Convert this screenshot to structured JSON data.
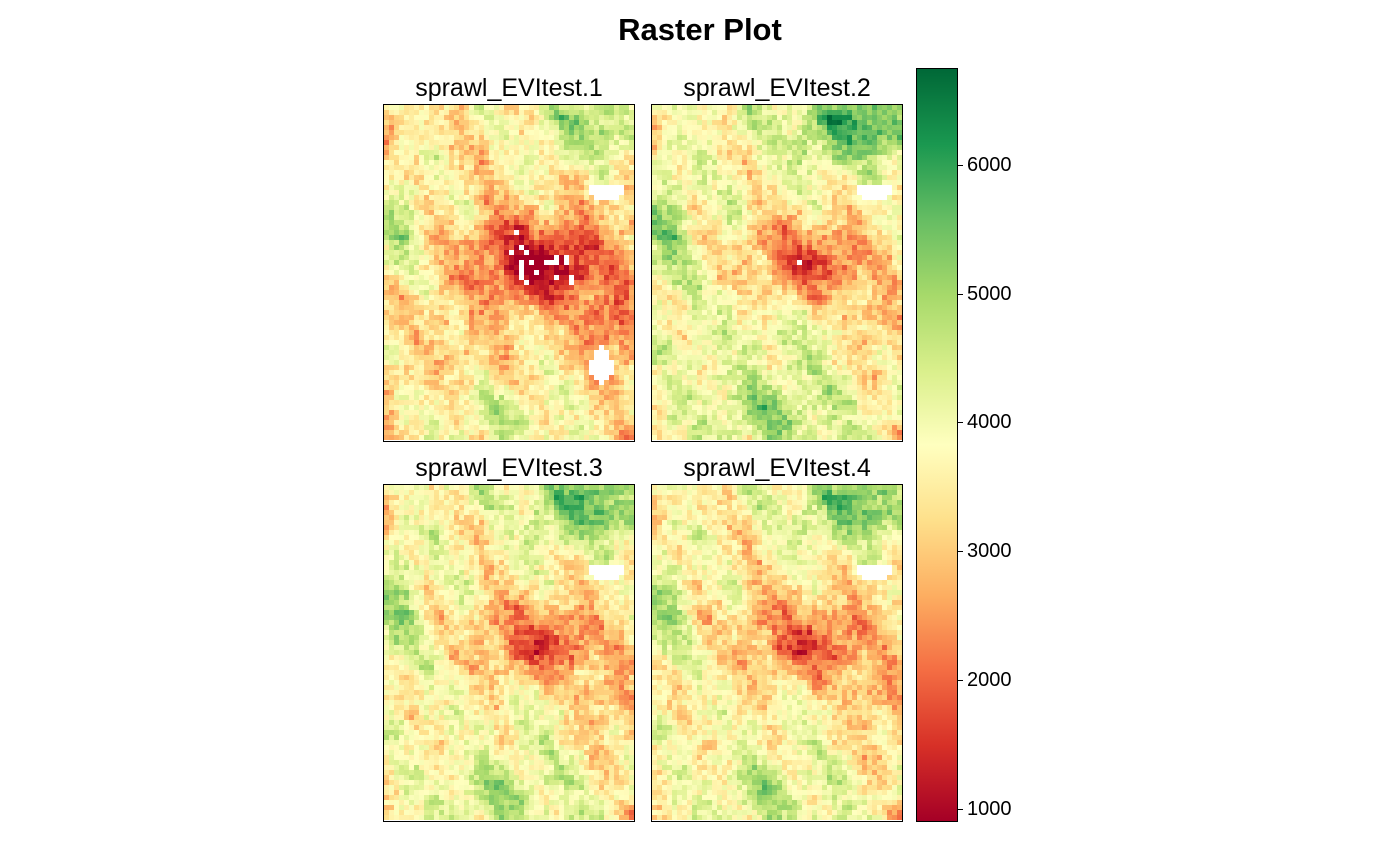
{
  "title": "Raster Plot",
  "chart_data": {
    "type": "heatmap",
    "title": "Raster Plot",
    "xlabel": "",
    "ylabel": "",
    "layout": "2x2",
    "panels": [
      {
        "name": "sprawl_EVItest.1",
        "mean_value_estimate": 3300
      },
      {
        "name": "sprawl_EVItest.2",
        "mean_value_estimate": 3700
      },
      {
        "name": "sprawl_EVItest.3",
        "mean_value_estimate": 3600
      },
      {
        "name": "sprawl_EVItest.4",
        "mean_value_estimate": 3500
      }
    ],
    "value_range": [
      900,
      6750
    ],
    "colorkey": {
      "ticks": [
        {
          "value": 1000,
          "label": "1000"
        },
        {
          "value": 2000,
          "label": "2000"
        },
        {
          "value": 3000,
          "label": "3000"
        },
        {
          "value": 4000,
          "label": "4000"
        },
        {
          "value": 5000,
          "label": "5000"
        },
        {
          "value": 6000,
          "label": "6000"
        }
      ],
      "palette": [
        "#a50026",
        "#d73027",
        "#f46d43",
        "#fdae61",
        "#fee08b",
        "#ffffbf",
        "#d9ef8b",
        "#a6d96a",
        "#66bd63",
        "#1a9850",
        "#006837"
      ],
      "position": "right"
    },
    "na_color": "#ffffff"
  }
}
